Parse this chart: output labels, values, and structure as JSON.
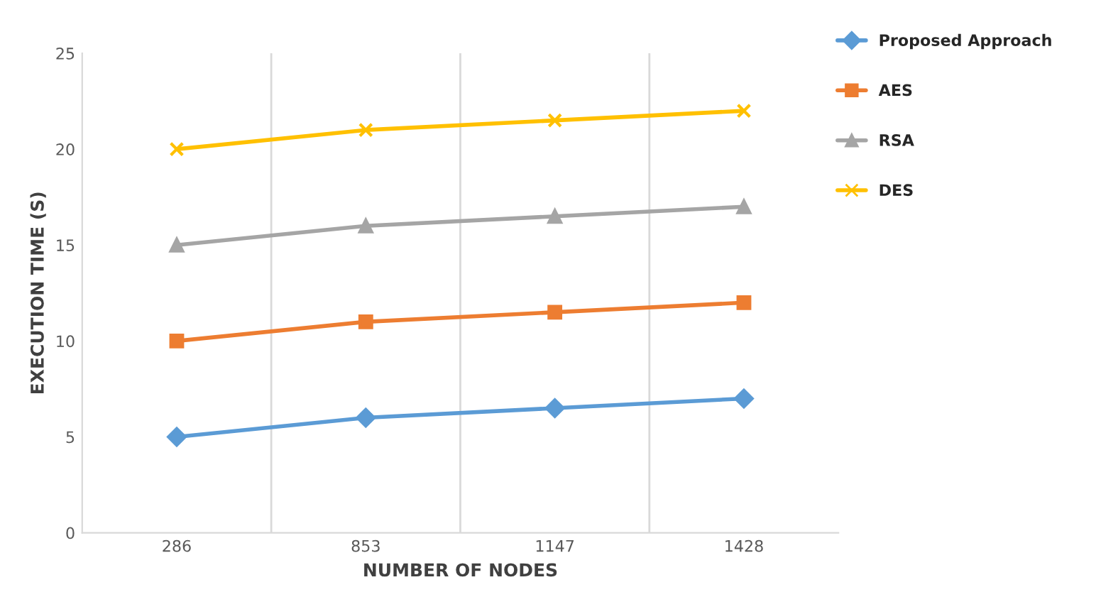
{
  "chart_data": {
    "type": "line",
    "xlabel": "NUMBER OF NODES",
    "ylabel": "EXECUTION TIME (S)",
    "categories": [
      "286",
      "853",
      "1147",
      "1428"
    ],
    "series": [
      {
        "name": "Proposed Approach",
        "color": "#5b9bd5",
        "marker": "diamond",
        "values": [
          5,
          6,
          6.5,
          7
        ]
      },
      {
        "name": "AES",
        "color": "#ed7d31",
        "marker": "square",
        "values": [
          10,
          11,
          11.5,
          12
        ]
      },
      {
        "name": "RSA",
        "color": "#a5a5a5",
        "marker": "triangle",
        "values": [
          15,
          16,
          16.5,
          17
        ]
      },
      {
        "name": "DES",
        "color": "#ffc000",
        "marker": "cross",
        "values": [
          20,
          21,
          21.5,
          22
        ]
      }
    ],
    "ylim": [
      0,
      25
    ],
    "yticks": [
      0,
      5,
      10,
      15,
      20,
      25
    ],
    "grid": "x",
    "legend": "top right",
    "line_style": "solid"
  }
}
